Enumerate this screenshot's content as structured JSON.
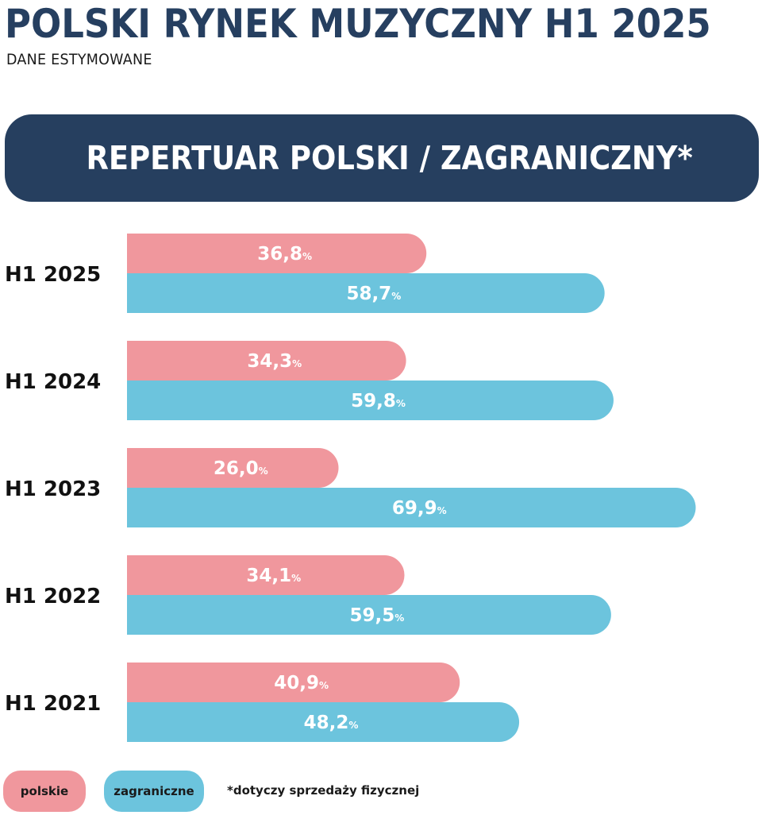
{
  "header": {
    "title": "POLSKI RYNEK MUZYCZNY H1 2025",
    "subtitle": "DANE ESTYMOWANE"
  },
  "banner": {
    "title": "REPERTUAR POLSKI / ZAGRANICZNY*"
  },
  "colors": {
    "navy": "#263f5f",
    "polskie": "#f0979d",
    "zagraniczne": "#6cc4dd"
  },
  "chart_data": {
    "type": "bar",
    "orientation": "horizontal",
    "categories": [
      "H1 2025",
      "H1 2024",
      "H1 2023",
      "H1 2022",
      "H1 2021"
    ],
    "series": [
      {
        "name": "polskie",
        "color": "#f0979d",
        "values": [
          36.8,
          34.3,
          26.0,
          34.1,
          40.9
        ],
        "labels": [
          "36,8",
          "34,3",
          "26,0",
          "34,1",
          "40,9"
        ]
      },
      {
        "name": "zagraniczne",
        "color": "#6cc4dd",
        "values": [
          58.7,
          59.8,
          69.9,
          59.5,
          48.2
        ],
        "labels": [
          "58,7",
          "59,8",
          "69,9",
          "59,5",
          "48,2"
        ]
      }
    ],
    "unit": "%",
    "xlim": [
      0,
      70
    ],
    "grid": false,
    "legend": "bottom-left"
  },
  "legend": {
    "items": [
      "polskie",
      "zagraniczne"
    ]
  },
  "footnote": "*dotyczy sprzedaży fizycznej"
}
